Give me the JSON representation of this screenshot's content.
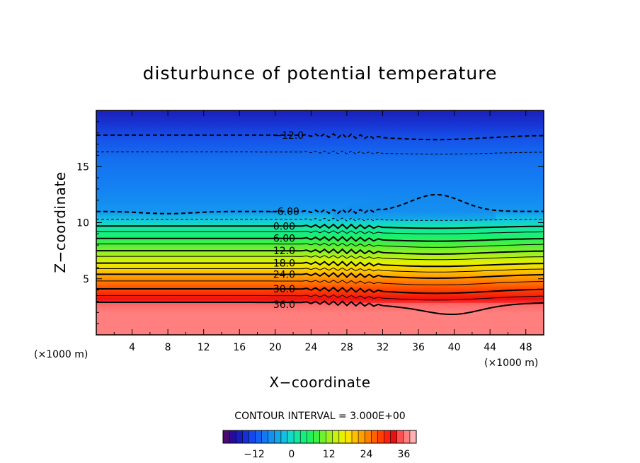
{
  "chart_data": {
    "type": "contour",
    "title": "disturbunce of potential temperature",
    "xlabel": "X−coordinate",
    "ylabel": "Z−coordinate",
    "x_unit_left": "(×1000 m)",
    "x_unit_right": "(×1000 m)",
    "xlim": [
      0,
      50
    ],
    "ylim": [
      0,
      20
    ],
    "x_ticks": [
      4,
      8,
      12,
      16,
      20,
      24,
      28,
      32,
      36,
      40,
      44,
      48
    ],
    "y_ticks": [
      5,
      10,
      15
    ],
    "contour_interval_text": "CONTOUR INTERVAL = 3.000E+00",
    "colorbar": {
      "range": [
        -22,
        40
      ],
      "ticks": [
        -12,
        0,
        12,
        24,
        36
      ],
      "colors": [
        "#4a0a6e",
        "#2a0a9a",
        "#1a1abf",
        "#1530d8",
        "#1448e8",
        "#1460f0",
        "#1478f2",
        "#1490f0",
        "#14a8e8",
        "#14c0e0",
        "#14d8c8",
        "#14e8a0",
        "#14f080",
        "#20f060",
        "#40f040",
        "#70f030",
        "#a0f020",
        "#c8f010",
        "#e8f000",
        "#ffe000",
        "#ffc000",
        "#ffa000",
        "#ff8000",
        "#ff6000",
        "#ff4000",
        "#ff2010",
        "#e81010",
        "#ff5050",
        "#ff8080",
        "#ffb0b0"
      ]
    },
    "contour_labels": [
      {
        "value": -12,
        "text": "−12.0",
        "x": 21.5,
        "z": 17.8
      },
      {
        "value": -6,
        "text": "−6.00",
        "x": 21.0,
        "z": 11.0
      },
      {
        "value": 0,
        "text": "0.00",
        "x": 21.0,
        "z": 9.7
      },
      {
        "value": 6,
        "text": "6.00",
        "x": 21.0,
        "z": 8.6
      },
      {
        "value": 12,
        "text": "12.0",
        "x": 21.0,
        "z": 7.5
      },
      {
        "value": 18,
        "text": "18.0",
        "x": 21.0,
        "z": 6.4
      },
      {
        "value": 24,
        "text": "24.0",
        "x": 21.0,
        "z": 5.4
      },
      {
        "value": 30,
        "text": "30.0",
        "x": 21.0,
        "z": 4.1
      },
      {
        "value": 36,
        "text": "36.0",
        "x": 21.0,
        "z": 2.7
      }
    ]
  }
}
